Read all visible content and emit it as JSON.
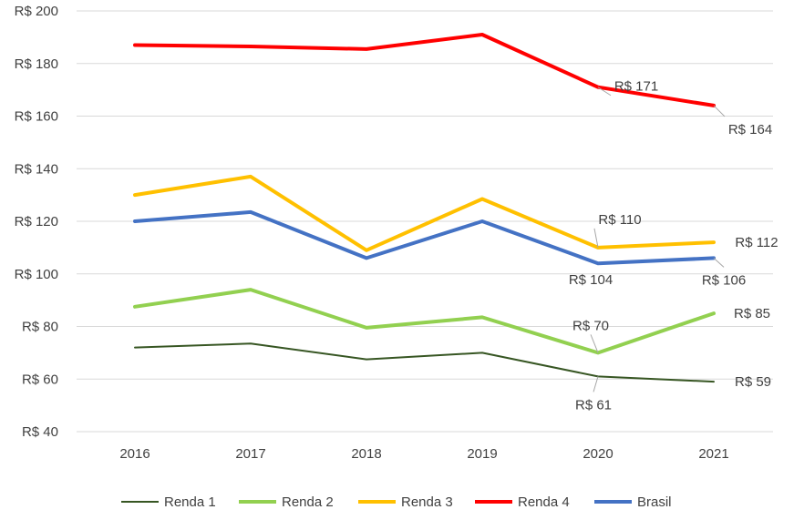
{
  "chart_data": {
    "type": "line",
    "title": "",
    "xlabel": "",
    "ylabel": "",
    "categories": [
      "2016",
      "2017",
      "2018",
      "2019",
      "2020",
      "2021"
    ],
    "ylim": [
      40,
      200
    ],
    "yticks": [
      40,
      60,
      80,
      100,
      120,
      140,
      160,
      180,
      200
    ],
    "ytick_labels": [
      "R$ 40",
      "R$ 60",
      "R$ 80",
      "R$ 100",
      "R$ 120",
      "R$ 140",
      "R$ 160",
      "R$ 180",
      "R$ 200"
    ],
    "grid": true,
    "legend_position": "bottom",
    "series": [
      {
        "name": "Renda 1",
        "color": "#375623",
        "width": 2,
        "values": [
          72,
          73.5,
          67.5,
          70,
          61,
          59
        ]
      },
      {
        "name": "Renda 2",
        "color": "#92D050",
        "width": 4,
        "values": [
          87.5,
          94,
          79.5,
          83.5,
          70,
          85
        ]
      },
      {
        "name": "Renda 3",
        "color": "#FFC000",
        "width": 4,
        "values": [
          130,
          137,
          109,
          128.5,
          110,
          112
        ]
      },
      {
        "name": "Renda 4",
        "color": "#FF0000",
        "width": 4,
        "values": [
          187,
          186.5,
          185.5,
          191,
          171,
          164
        ]
      },
      {
        "name": "Brasil",
        "color": "#4472C4",
        "width": 4,
        "values": [
          120,
          123.5,
          106,
          120,
          104,
          106
        ]
      }
    ],
    "data_labels": [
      {
        "series": "Renda 4",
        "category": "2020",
        "text": "R$ 171"
      },
      {
        "series": "Renda 4",
        "category": "2021",
        "text": "R$ 164"
      },
      {
        "series": "Renda 3",
        "category": "2020",
        "text": "R$ 110"
      },
      {
        "series": "Renda 3",
        "category": "2021",
        "text": "R$ 112"
      },
      {
        "series": "Brasil",
        "category": "2020",
        "text": "R$ 104"
      },
      {
        "series": "Brasil",
        "category": "2021",
        "text": "R$ 106"
      },
      {
        "series": "Renda 2",
        "category": "2020",
        "text": "R$ 70"
      },
      {
        "series": "Renda 2",
        "category": "2021",
        "text": "R$ 85"
      },
      {
        "series": "Renda 1",
        "category": "2020",
        "text": "R$ 61"
      },
      {
        "series": "Renda 1",
        "category": "2021",
        "text": "R$ 59"
      }
    ]
  }
}
